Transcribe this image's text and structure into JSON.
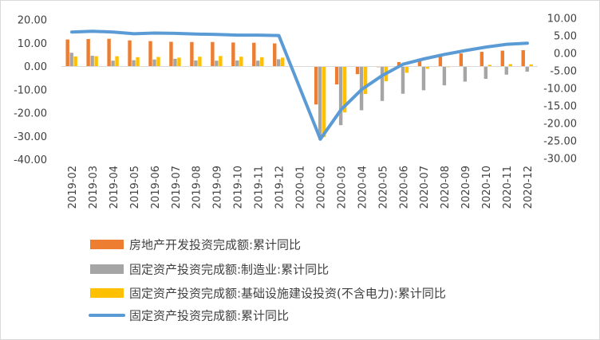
{
  "chart_data": {
    "type": "bar",
    "categories": [
      "2019-02",
      "2019-03",
      "2019-04",
      "2019-05",
      "2019-06",
      "2019-07",
      "2019-08",
      "2019-09",
      "2019-10",
      "2019-11",
      "2019-12",
      "2020-01",
      "2020-02",
      "2020-03",
      "2020-04",
      "2020-05",
      "2020-06",
      "2020-07",
      "2020-08",
      "2020-09",
      "2020-10",
      "2020-11",
      "2020-12"
    ],
    "left_axis": {
      "min": -40,
      "max": 20,
      "step": 10,
      "tick_labels": [
        "20.00",
        "10.00",
        "0.00",
        "-10.00",
        "-20.00",
        "-30.00",
        "-40.00"
      ]
    },
    "right_axis": {
      "min": -30,
      "max": 10,
      "step": 5,
      "tick_labels": [
        "10.00",
        "5.00",
        "0.00",
        "-5.00",
        "-10.00",
        "-15.00",
        "-20.00",
        "-25.00",
        "-30.00"
      ]
    },
    "series": [
      {
        "name": "房地产开发投资完成额:累计同比",
        "kind": "bar",
        "axis": "left",
        "color": "#ED7D31",
        "values": [
          11.6,
          11.8,
          11.9,
          11.2,
          10.9,
          10.6,
          10.5,
          10.5,
          10.3,
          10.2,
          9.9,
          null,
          -16.3,
          -7.7,
          -3.3,
          -0.3,
          1.9,
          3.4,
          4.6,
          5.6,
          6.3,
          6.8,
          7.0
        ]
      },
      {
        "name": "固定资产投资完成额:制造业:累计同比",
        "kind": "bar",
        "axis": "left",
        "color": "#A5A5A5",
        "values": [
          5.9,
          4.6,
          2.5,
          2.7,
          3.0,
          3.3,
          2.6,
          2.5,
          2.6,
          2.5,
          3.1,
          null,
          -31.5,
          -25.2,
          -18.8,
          -14.8,
          -11.7,
          -10.2,
          -8.1,
          -6.5,
          -5.3,
          -3.5,
          -2.2
        ]
      },
      {
        "name": "固定资产投资完成额:基础设施建设投资(不含电力):累计同比",
        "kind": "bar",
        "axis": "left",
        "color": "#FFC000",
        "values": [
          4.3,
          4.4,
          4.4,
          4.0,
          4.1,
          3.8,
          4.2,
          4.5,
          4.2,
          4.0,
          3.8,
          null,
          -30.3,
          -19.7,
          -11.8,
          -6.3,
          -2.7,
          -1.0,
          -0.3,
          0.2,
          0.7,
          1.0,
          0.9
        ]
      },
      {
        "name": "固定资产投资完成额:累计同比",
        "kind": "line",
        "axis": "right",
        "color": "#5B9BD5",
        "values": [
          6.1,
          6.3,
          6.1,
          5.6,
          5.8,
          5.7,
          5.5,
          5.4,
          5.2,
          5.2,
          5.1,
          null,
          -24.5,
          -16.1,
          -10.3,
          -6.3,
          -3.1,
          -1.6,
          -0.3,
          0.8,
          1.8,
          2.6,
          2.9
        ]
      }
    ]
  }
}
